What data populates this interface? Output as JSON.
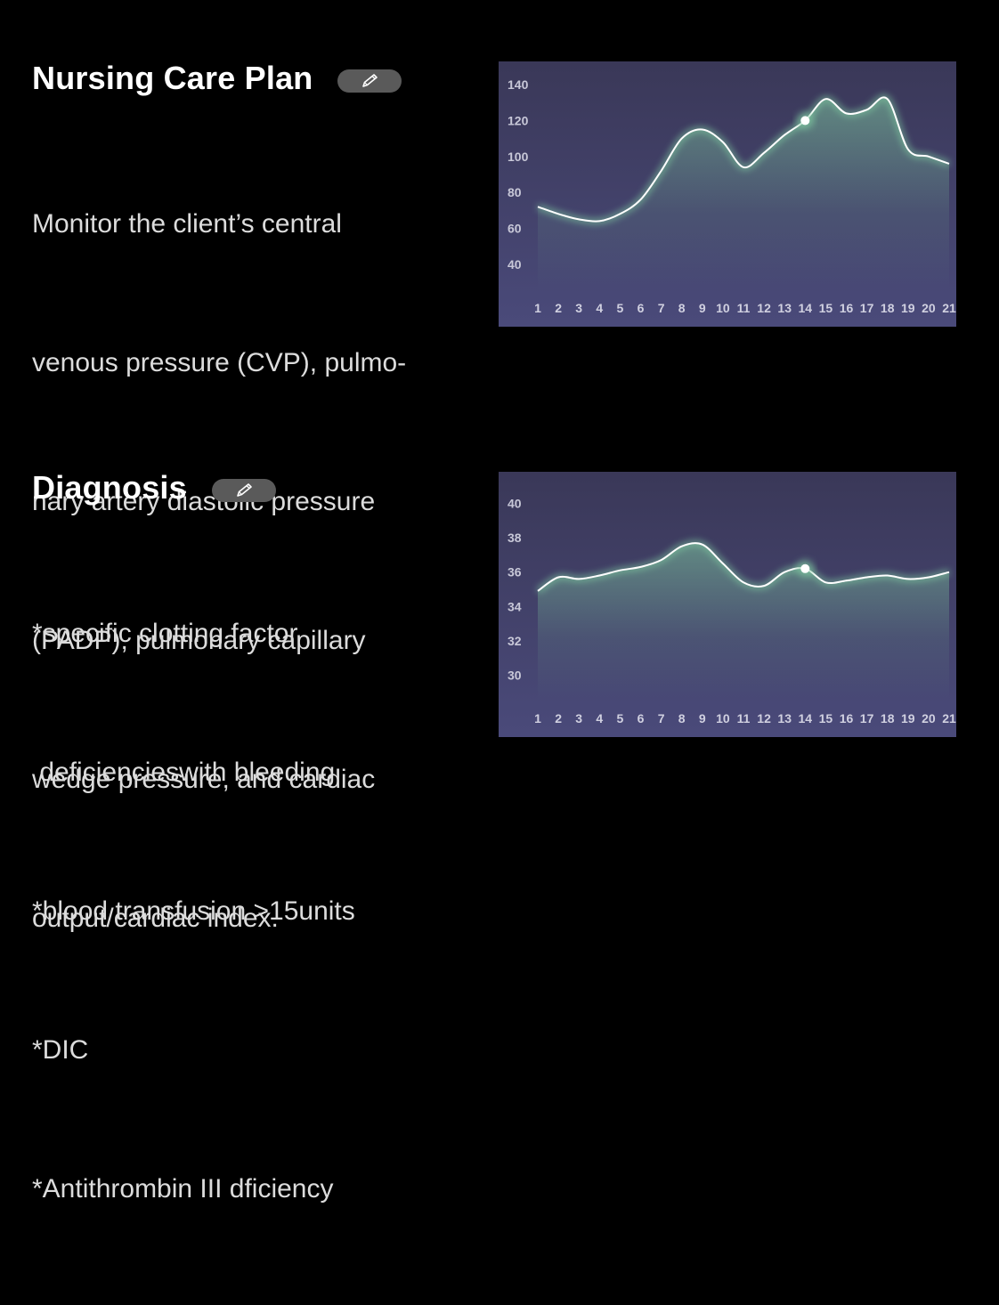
{
  "nursing_care_plan": {
    "title": "Nursing Care Plan",
    "edit_icon": "pencil-icon",
    "text_lines": [
      "Monitor the client’s central",
      "venous pressure (CVP), pulmo-",
      "nary artery diastolic pressure",
      "(PADP), pulmonary capillary",
      "wedge pressure, and cardiac",
      "output/cardiac index."
    ]
  },
  "diagnosis": {
    "title": "Diagnosis",
    "edit_icon": "pencil-icon",
    "text_lines": [
      "*specific clotting factor",
      " deficiencieswith bleeding",
      "*blood transfusion >15units",
      "*DIC",
      "*Antithrombin III dficiency"
    ]
  },
  "colors": {
    "background": "#000000",
    "chart_bg_top": "#3a3858",
    "chart_bg_bottom": "#4a4a7a",
    "line": "#ffffff",
    "glow": "#7fc9a0"
  },
  "chart_data": [
    {
      "type": "area",
      "x": [
        1,
        2,
        3,
        4,
        5,
        6,
        7,
        8,
        9,
        10,
        11,
        12,
        13,
        14,
        15,
        16,
        17,
        18,
        19,
        20,
        21
      ],
      "values": [
        72,
        68,
        65,
        64,
        68,
        76,
        92,
        110,
        115,
        108,
        94,
        102,
        112,
        120,
        132,
        124,
        126,
        132,
        104,
        100,
        96
      ],
      "y_ticks": [
        40,
        60,
        80,
        100,
        120,
        140
      ],
      "ylim": [
        30,
        145
      ],
      "highlight_x": 14,
      "grid": false
    },
    {
      "type": "area",
      "x": [
        1,
        2,
        3,
        4,
        5,
        6,
        7,
        8,
        9,
        10,
        11,
        12,
        13,
        14,
        15,
        16,
        17,
        18,
        19,
        20,
        21
      ],
      "values": [
        34.9,
        35.7,
        35.6,
        35.8,
        36.1,
        36.3,
        36.7,
        37.5,
        37.6,
        36.5,
        35.4,
        35.2,
        36.0,
        36.2,
        35.4,
        35.5,
        35.7,
        35.8,
        35.6,
        35.7,
        36.0
      ],
      "y_ticks": [
        30,
        32,
        34,
        36,
        38,
        40
      ],
      "ylim": [
        29,
        41
      ],
      "highlight_x": 14,
      "grid": false
    }
  ]
}
